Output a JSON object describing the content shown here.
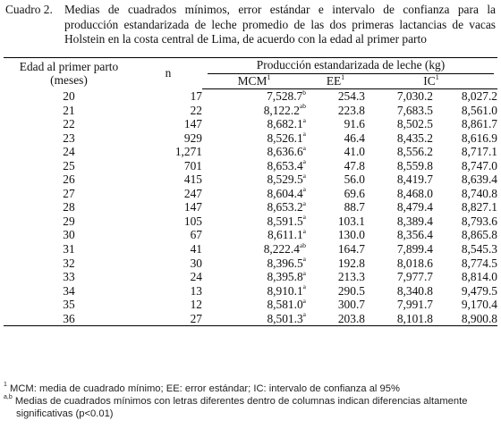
{
  "caption": {
    "label": "Cuadro 2.",
    "line1": "Medias de cuadrados mínimos, error estándar e intervalo de confianza para la",
    "line2": "producción estandarizada de leche promedio de las dos primeras lactancias de vacas",
    "line3": "Holstein en la costa central de Lima, de acuerdo con la edad al primer parto"
  },
  "headers": {
    "edad": "Edad al primer parto",
    "edad_unit": "(meses)",
    "n": "n",
    "produccion": "Producción estandarizada de leche (kg)",
    "mcm": "MCM",
    "mcm_note": "1",
    "ee": "EE",
    "ee_note": "1",
    "ic": "IC",
    "ic_note": "1"
  },
  "rows": [
    {
      "edad": "20",
      "n": "17",
      "mcm": "7,528.7",
      "sup": "b",
      "ee": "254.3",
      "ic_low": "7,030.2",
      "ic_high": "8,027.2"
    },
    {
      "edad": "21",
      "n": "22",
      "mcm": "8,122.2",
      "sup": "ab",
      "ee": "223.8",
      "ic_low": "7,683.5",
      "ic_high": "8,561.0"
    },
    {
      "edad": "22",
      "n": "147",
      "mcm": "8,682.1",
      "sup": "a",
      "ee": "91.6",
      "ic_low": "8,502.5",
      "ic_high": "8,861.7"
    },
    {
      "edad": "23",
      "n": "929",
      "mcm": "8,526.1",
      "sup": "a",
      "ee": "46.4",
      "ic_low": "8,435.2",
      "ic_high": "8,616.9"
    },
    {
      "edad": "24",
      "n": "1,271",
      "mcm": "8,636.6",
      "sup": "a",
      "ee": "41.0",
      "ic_low": "8,556.2",
      "ic_high": "8,717.1"
    },
    {
      "edad": "25",
      "n": "701",
      "mcm": "8,653.4",
      "sup": "a",
      "ee": "47.8",
      "ic_low": "8,559.8",
      "ic_high": "8,747.0"
    },
    {
      "edad": "26",
      "n": "415",
      "mcm": "8,529.5",
      "sup": "a",
      "ee": "56.0",
      "ic_low": "8,419.7",
      "ic_high": "8,639.4"
    },
    {
      "edad": "27",
      "n": "247",
      "mcm": "8,604.4",
      "sup": "a",
      "ee": "69.6",
      "ic_low": "8,468.0",
      "ic_high": "8,740.8"
    },
    {
      "edad": "28",
      "n": "147",
      "mcm": "8,653.2",
      "sup": "a",
      "ee": "88.7",
      "ic_low": "8,479.4",
      "ic_high": "8,827.1"
    },
    {
      "edad": "29",
      "n": "105",
      "mcm": "8,591.5",
      "sup": "a",
      "ee": "103.1",
      "ic_low": "8,389.4",
      "ic_high": "8,793.6"
    },
    {
      "edad": "30",
      "n": "67",
      "mcm": "8,611.1",
      "sup": "a",
      "ee": "130.0",
      "ic_low": "8,356.4",
      "ic_high": "8,865.8"
    },
    {
      "edad": "31",
      "n": "41",
      "mcm": "8,222.4",
      "sup": "ab",
      "ee": "164.7",
      "ic_low": "7,899.4",
      "ic_high": "8,545.3"
    },
    {
      "edad": "32",
      "n": "30",
      "mcm": "8,396.5",
      "sup": "a",
      "ee": "192.8",
      "ic_low": "8,018.6",
      "ic_high": "8,774.5"
    },
    {
      "edad": "33",
      "n": "24",
      "mcm": "8,395.8",
      "sup": "a",
      "ee": "213.3",
      "ic_low": "7,977.7",
      "ic_high": "8,814.0"
    },
    {
      "edad": "34",
      "n": "13",
      "mcm": "8,910.1",
      "sup": "a",
      "ee": "290.5",
      "ic_low": "8,340.8",
      "ic_high": "9,479.5"
    },
    {
      "edad": "35",
      "n": "12",
      "mcm": "8,581.0",
      "sup": "a",
      "ee": "300.7",
      "ic_low": "7,991.7",
      "ic_high": "9,170.4"
    },
    {
      "edad": "36",
      "n": "27",
      "mcm": "8,501.3",
      "sup": "a",
      "ee": "203.8",
      "ic_low": "8,101.8",
      "ic_high": "8,900.8"
    }
  ],
  "notes": {
    "note1_mark": "1",
    "note1": " MCM: media de cuadrado mínimo; EE: error estándar; IC: intervalo de confianza al 95%",
    "note2_mark": "a,b",
    "note2": " Medias de cuadrados mínimos con letras diferentes dentro de columnas indican diferencias altamente significativas (p<0.01)"
  }
}
